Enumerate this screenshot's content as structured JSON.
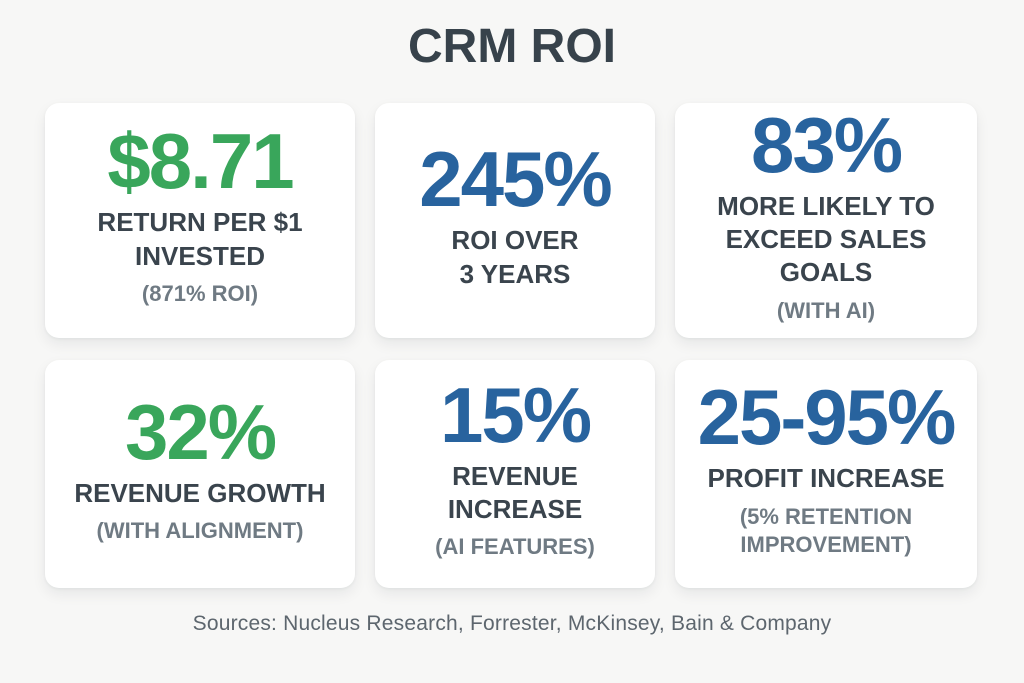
{
  "page": {
    "title": "CRM ROI",
    "sources_line": "Sources: Nucleus Research, Forrester, McKinsey, Bain & Company"
  },
  "colors": {
    "background": "#f7f7f6",
    "card_background": "#ffffff",
    "green_accent": "#39a65b",
    "blue_accent": "#28639e",
    "label_dark": "#3a444d",
    "caption_gray": "#6f7a83",
    "title_dark": "#37424b",
    "sources_gray": "#5d666e"
  },
  "chart_data": {
    "type": "table",
    "title": "CRM ROI",
    "stats": [
      {
        "value": "$8.71",
        "numeric": 8.71,
        "label": "RETURN PER $1\nINVESTED",
        "caption": "(871% ROI)",
        "color": "#39a65b"
      },
      {
        "value": "245%",
        "numeric": 245,
        "label": "ROI OVER\n3 YEARS",
        "caption": "",
        "color": "#28639e"
      },
      {
        "value": "83%",
        "numeric": 83,
        "label": "MORE LIKELY TO\nEXCEED SALES GOALS",
        "caption": "(WITH AI)",
        "color": "#28639e"
      },
      {
        "value": "32%",
        "numeric": 32,
        "label": "REVENUE GROWTH",
        "caption": "(WITH ALIGNMENT)",
        "color": "#39a65b"
      },
      {
        "value": "15%",
        "numeric": 15,
        "label": "REVENUE INCREASE",
        "caption": "(AI FEATURES)",
        "color": "#28639e"
      },
      {
        "value": "25-95%",
        "numeric_range": [
          25,
          95
        ],
        "label": "PROFIT INCREASE",
        "caption": "(5% RETENTION\nIMPROVEMENT)",
        "color": "#28639e"
      }
    ],
    "sources": [
      "Nucleus Research",
      "Forrester",
      "McKinsey",
      "Bain & Company"
    ]
  }
}
